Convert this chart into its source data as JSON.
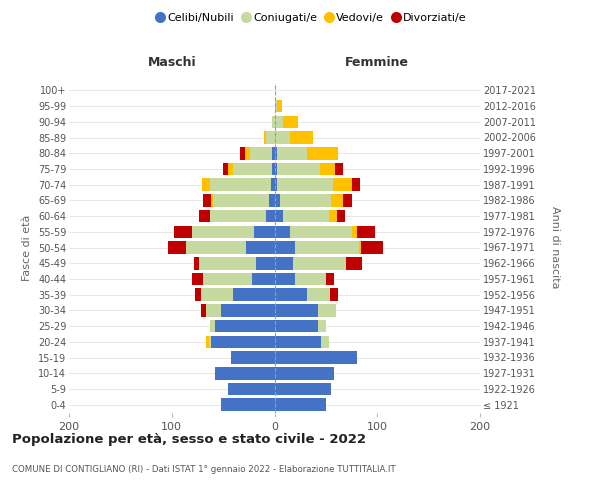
{
  "age_groups": [
    "100+",
    "95-99",
    "90-94",
    "85-89",
    "80-84",
    "75-79",
    "70-74",
    "65-69",
    "60-64",
    "55-59",
    "50-54",
    "45-49",
    "40-44",
    "35-39",
    "30-34",
    "25-29",
    "20-24",
    "15-19",
    "10-14",
    "5-9",
    "0-4"
  ],
  "birth_years": [
    "≤ 1921",
    "1922-1926",
    "1927-1931",
    "1932-1936",
    "1937-1941",
    "1942-1946",
    "1947-1951",
    "1952-1956",
    "1957-1961",
    "1962-1966",
    "1967-1971",
    "1972-1976",
    "1977-1981",
    "1982-1986",
    "1987-1991",
    "1992-1996",
    "1997-2001",
    "2002-2006",
    "2007-2011",
    "2012-2016",
    "2017-2021"
  ],
  "maschi": {
    "celibi": [
      0,
      0,
      0,
      0,
      2,
      2,
      3,
      5,
      8,
      20,
      28,
      18,
      22,
      40,
      52,
      58,
      62,
      42,
      58,
      45,
      52
    ],
    "coniugati": [
      0,
      0,
      2,
      8,
      22,
      38,
      60,
      55,
      55,
      60,
      58,
      55,
      48,
      32,
      15,
      5,
      2,
      0,
      0,
      0,
      0
    ],
    "vedovi": [
      0,
      0,
      0,
      2,
      5,
      5,
      8,
      2,
      0,
      0,
      0,
      0,
      0,
      0,
      0,
      0,
      3,
      0,
      0,
      0,
      0
    ],
    "divorziati": [
      0,
      0,
      0,
      0,
      5,
      5,
      0,
      8,
      10,
      18,
      18,
      5,
      10,
      5,
      5,
      0,
      0,
      0,
      0,
      0,
      0
    ]
  },
  "femmine": {
    "nubili": [
      0,
      0,
      0,
      0,
      2,
      2,
      2,
      5,
      8,
      15,
      20,
      18,
      20,
      32,
      42,
      42,
      45,
      80,
      58,
      55,
      50
    ],
    "coniugate": [
      0,
      2,
      8,
      15,
      30,
      42,
      55,
      50,
      45,
      60,
      62,
      52,
      30,
      22,
      18,
      8,
      8,
      0,
      0,
      0,
      0
    ],
    "vedove": [
      0,
      5,
      15,
      22,
      30,
      15,
      18,
      12,
      8,
      5,
      2,
      0,
      0,
      0,
      0,
      0,
      0,
      0,
      0,
      0,
      0
    ],
    "divorziate": [
      0,
      0,
      0,
      0,
      0,
      8,
      8,
      8,
      8,
      18,
      22,
      15,
      8,
      8,
      0,
      0,
      0,
      0,
      0,
      0,
      0
    ]
  },
  "colors": {
    "celibi_nubili": "#4472c4",
    "coniugati": "#c5d9a0",
    "vedovi": "#ffc000",
    "divorziati": "#c00000"
  },
  "title": "Popolazione per età, sesso e stato civile - 2022",
  "subtitle": "COMUNE DI CONTIGLIANO (RI) - Dati ISTAT 1° gennaio 2022 - Elaborazione TUTTITALIA.IT",
  "label_maschi": "Maschi",
  "label_femmine": "Femmine",
  "ylabel_left": "Fasce di età",
  "ylabel_right": "Anni di nascita",
  "xlim": 200,
  "legend_labels": [
    "Celibi/Nubili",
    "Coniugati/e",
    "Vedovi/e",
    "Divorziati/e"
  ],
  "background_color": "#ffffff",
  "grid_color": "#dddddd"
}
